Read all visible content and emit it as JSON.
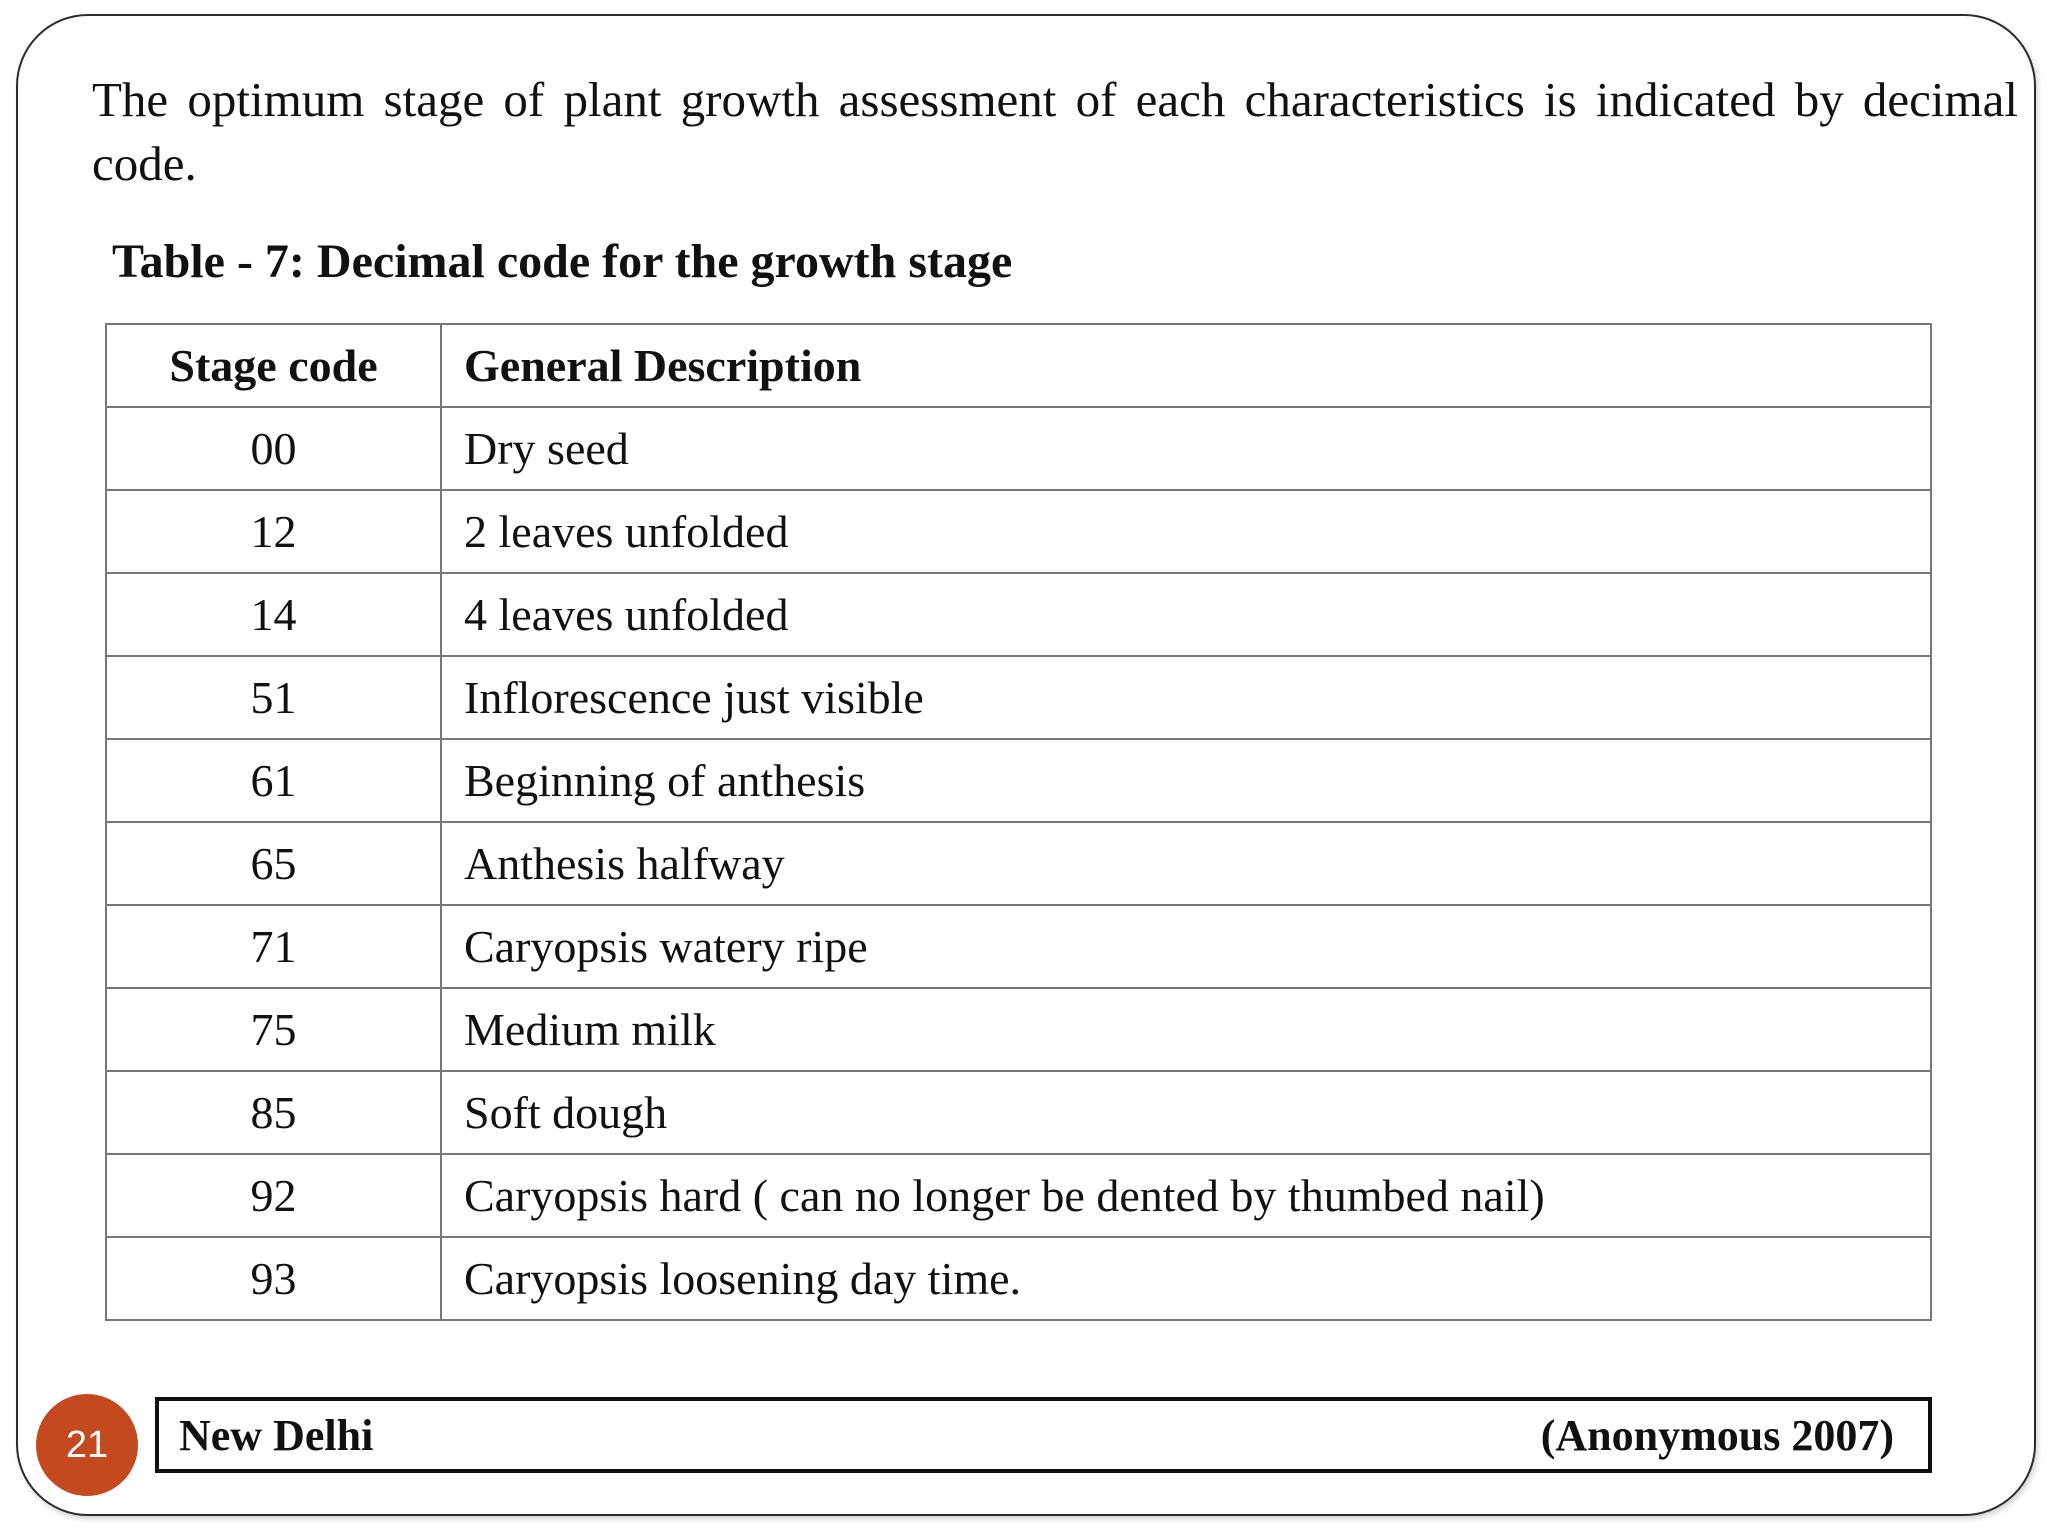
{
  "intro": {
    "line1": "The optimum stage of plant growth assessment of each characteristics is indicated by decimal",
    "line2": "code."
  },
  "table_title": "Table - 7: Decimal code for the growth stage",
  "table": {
    "col_headers": [
      "Stage code",
      "General Description"
    ],
    "rows": [
      {
        "code": "00",
        "description": "Dry seed"
      },
      {
        "code": "12",
        "description": "2 leaves unfolded"
      },
      {
        "code": "14",
        "description": "4 leaves unfolded"
      },
      {
        "code": "51",
        "description": "Inflorescence just visible"
      },
      {
        "code": "61",
        "description": "Beginning of anthesis"
      },
      {
        "code": "65",
        "description": "Anthesis halfway"
      },
      {
        "code": "71",
        "description": "Caryopsis watery ripe"
      },
      {
        "code": "75",
        "description": "Medium milk"
      },
      {
        "code": "85",
        "description": "Soft dough"
      },
      {
        "code": "92",
        "description": "Caryopsis hard ( can no longer be dented by thumbed nail)"
      },
      {
        "code": "93",
        "description": "Caryopsis loosening day time."
      }
    ]
  },
  "footer": {
    "location": "New Delhi",
    "citation": "(Anonymous 2007)"
  },
  "page_number": "21",
  "colors": {
    "page_badge": "#C5491E",
    "text": "#111111",
    "table_grid": "#777777",
    "slide_border": "#2b2b2b"
  }
}
